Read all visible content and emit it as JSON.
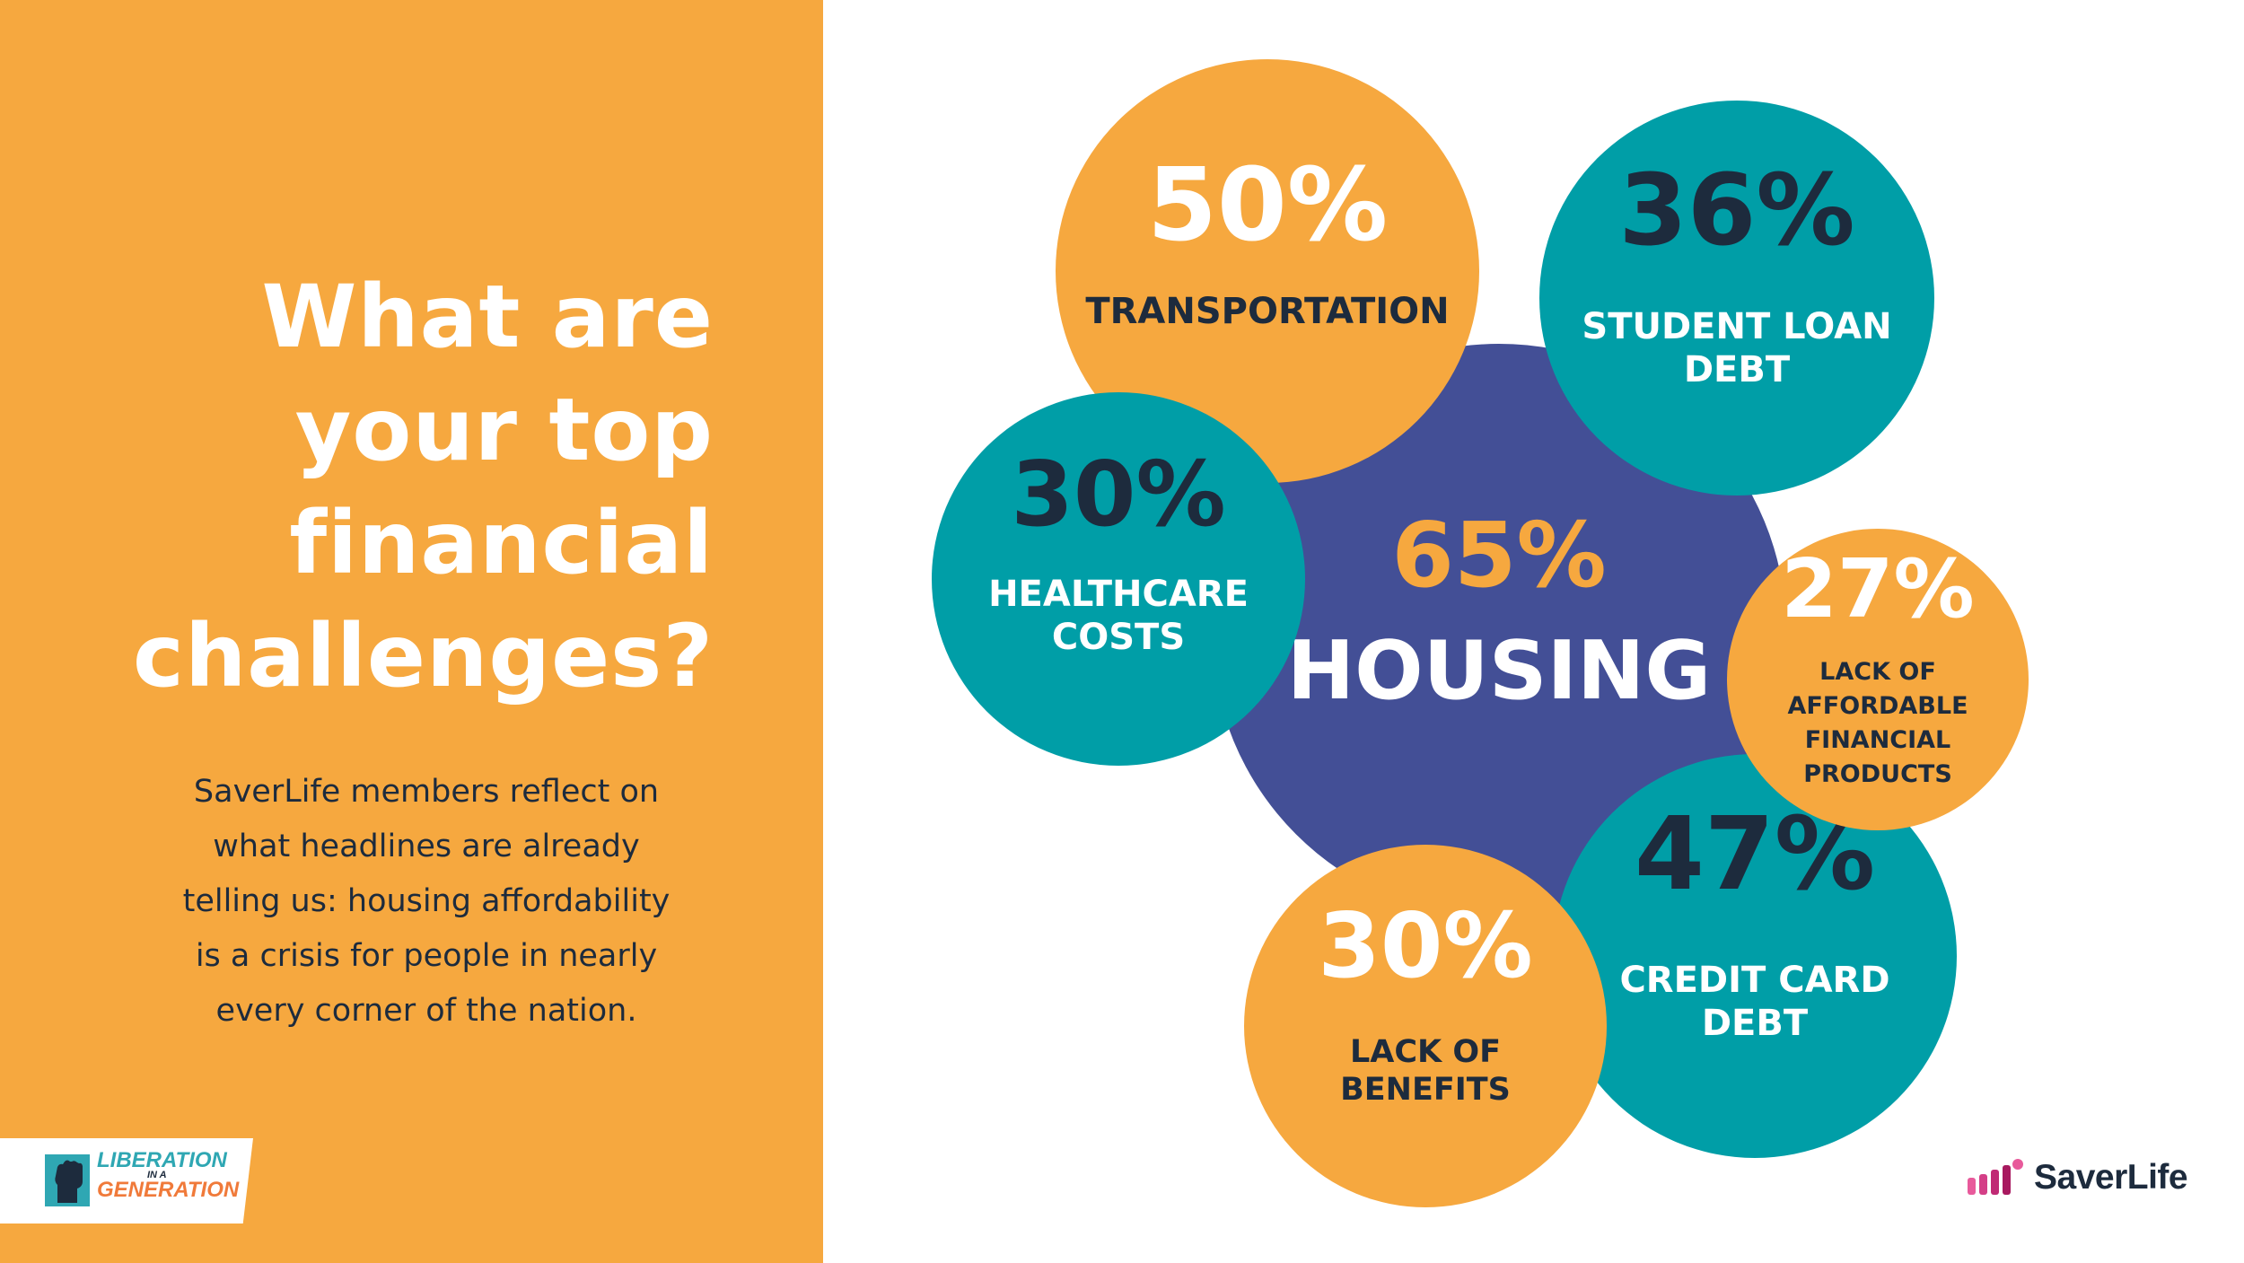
{
  "headline": {
    "line1": "What are",
    "line2": "your top",
    "line3": "financial",
    "line4": "challenges?"
  },
  "subtext": {
    "line1": "SaverLife members reflect on",
    "line2": "what headlines are already",
    "line3": "telling us: housing affordability",
    "line4": "is a crisis for people in nearly",
    "line5": "every corner of the nation."
  },
  "badge": {
    "line1": "LIBERATION",
    "line2": "IN A",
    "line3": "GENERATION",
    "icon": "raised-fist-icon"
  },
  "logo": {
    "text": "SaverLife",
    "mark": "saverlife-bars-icon"
  },
  "colors": {
    "orange": "#f6a83f",
    "teal": "#009ea7",
    "navy": "#434f96",
    "dark_text": "#1d2b3d",
    "white": "#ffffff"
  },
  "chart_data": {
    "type": "bubble",
    "unit": "%",
    "items": [
      {
        "category": "HOUSING",
        "label_lines": [
          "HOUSING"
        ],
        "value": 65,
        "display": "65%",
        "color": "navy"
      },
      {
        "category": "TRANSPORTATION",
        "label_lines": [
          "TRANSPORTATION"
        ],
        "value": 50,
        "display": "50%",
        "color": "orange"
      },
      {
        "category": "CREDIT CARD DEBT",
        "label_lines": [
          "CREDIT CARD",
          "DEBT"
        ],
        "value": 47,
        "display": "47%",
        "color": "teal"
      },
      {
        "category": "STUDENT LOAN DEBT",
        "label_lines": [
          "STUDENT LOAN",
          "DEBT"
        ],
        "value": 36,
        "display": "36%",
        "color": "teal"
      },
      {
        "category": "HEALTHCARE COSTS",
        "label_lines": [
          "HEALTHCARE",
          "COSTS"
        ],
        "value": 30,
        "display": "30%",
        "color": "teal"
      },
      {
        "category": "LACK OF BENEFITS",
        "label_lines": [
          "LACK OF",
          "BENEFITS"
        ],
        "value": 30,
        "display": "30%",
        "color": "orange"
      },
      {
        "category": "LACK OF AFFORDABLE FINANCIAL PRODUCTS",
        "label_lines": [
          "LACK OF",
          "AFFORDABLE",
          "FINANCIAL",
          "PRODUCTS"
        ],
        "value": 27,
        "display": "27%",
        "color": "orange"
      }
    ]
  }
}
